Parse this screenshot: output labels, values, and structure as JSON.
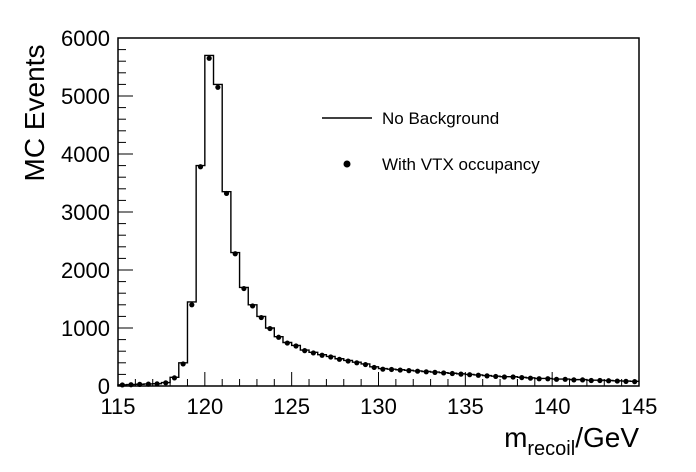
{
  "chart_data": {
    "type": "histogram",
    "title": "",
    "xlabel_main": "m",
    "xlabel_sub": "recoil",
    "xlabel_unit": "/GeV",
    "ylabel": "MC Events",
    "xlim": [
      115,
      145
    ],
    "ylim": [
      0,
      6000
    ],
    "x_ticks": [
      115,
      120,
      125,
      130,
      135,
      140,
      145
    ],
    "y_ticks": [
      0,
      1000,
      2000,
      3000,
      4000,
      5000,
      6000
    ],
    "bin_width": 0.5,
    "legend": {
      "placement": "top-right"
    },
    "series": [
      {
        "name": "No Background",
        "style": "step",
        "color": "#000000",
        "values": [
          20,
          25,
          30,
          35,
          40,
          60,
          150,
          400,
          1450,
          3800,
          5700,
          5200,
          3350,
          2300,
          1700,
          1400,
          1200,
          1000,
          850,
          750,
          700,
          620,
          580,
          540,
          510,
          470,
          440,
          410,
          380,
          330,
          300,
          290,
          280,
          270,
          260,
          250,
          240,
          230,
          220,
          210,
          200,
          190,
          180,
          170,
          160,
          160,
          150,
          140,
          130,
          130,
          120,
          120,
          110,
          110,
          100,
          100,
          95,
          90,
          85,
          80
        ]
      },
      {
        "name": "With VTX occupancy",
        "style": "markers",
        "color": "#000000",
        "values": [
          18,
          22,
          28,
          32,
          38,
          55,
          140,
          380,
          1400,
          3780,
          5650,
          5150,
          3320,
          2280,
          1680,
          1380,
          1180,
          990,
          840,
          740,
          690,
          610,
          570,
          530,
          500,
          460,
          430,
          400,
          370,
          320,
          290,
          285,
          275,
          265,
          255,
          245,
          235,
          225,
          215,
          205,
          195,
          185,
          175,
          165,
          155,
          155,
          145,
          135,
          125,
          125,
          115,
          115,
          105,
          105,
          95,
          95,
          90,
          85,
          80,
          75
        ]
      }
    ]
  }
}
